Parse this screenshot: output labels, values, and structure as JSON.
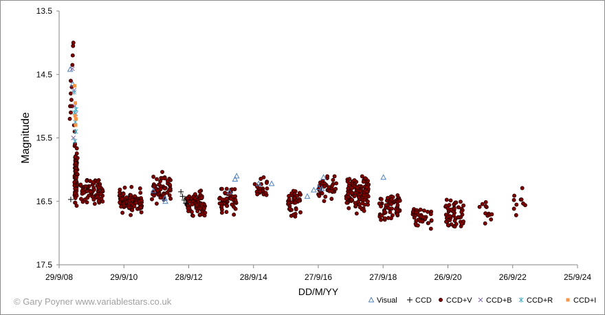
{
  "credit": "© Gary Poyner  www.variablestars.co.uk",
  "chart_data": {
    "type": "scatter",
    "xlabel": "DD/M/YY",
    "ylabel": "Magnitude",
    "x_ticks": [
      "29/9/08",
      "29/9/10",
      "28/9/12",
      "28/9/14",
      "27/9/16",
      "27/9/18",
      "26/9/20",
      "26/9/22",
      "25/9/24"
    ],
    "y_ticks": [
      "13.5",
      "14.5",
      "15.5",
      "16.5",
      "17.5"
    ],
    "xlim_years": [
      2008.74,
      2024.74
    ],
    "ylim": [
      13.5,
      17.5
    ],
    "y_inverted": true,
    "series": [
      {
        "name": "Visual",
        "marker": "triangle",
        "color": "#4f81bd",
        "x": [
          2009.08,
          2009.16,
          2011.65,
          2012.0,
          2012.02,
          2014.0,
          2014.17,
          2014.22,
          2014.9,
          2015.3,
          2016.4,
          2016.6,
          2016.75,
          2016.85,
          2016.9,
          2018.75
        ],
        "y": [
          14.42,
          14.65,
          16.33,
          16.45,
          16.5,
          16.35,
          16.15,
          16.1,
          16.22,
          16.22,
          16.42,
          16.32,
          16.28,
          16.3,
          16.12,
          16.12
        ]
      },
      {
        "name": "CCD",
        "marker": "plus",
        "color": "#000000",
        "x": [
          2009.1,
          2012.5,
          2012.55,
          2012.6,
          2012.65
        ],
        "y": [
          16.47,
          16.35,
          16.42,
          16.48,
          16.53
        ]
      },
      {
        "name": "CCD+V",
        "marker": "circle",
        "color": "#7b0000",
        "n": 900
      },
      {
        "name": "CCD+B",
        "marker": "x",
        "color": "#8064a2",
        "x": [
          2009.15,
          2009.2,
          2009.22,
          2009.25,
          2009.18
        ],
        "y": [
          14.41,
          14.75,
          15.0,
          15.12,
          15.5
        ]
      },
      {
        "name": "CCD+R",
        "marker": "star",
        "color": "#4bacc6",
        "x": [
          2009.2,
          2009.22,
          2009.24,
          2009.25,
          2009.23,
          2009.26
        ],
        "y": [
          14.78,
          15.1,
          15.25,
          15.4,
          15.55,
          15.05
        ]
      },
      {
        "name": "CCD+I",
        "marker": "square",
        "color": "#f79646",
        "x": [
          2009.22,
          2009.24,
          2009.23,
          2009.25,
          2009.26
        ],
        "y": [
          14.68,
          14.95,
          15.15,
          15.3,
          15.2
        ]
      }
    ],
    "grid": false,
    "legend_position": "bottom-right"
  }
}
